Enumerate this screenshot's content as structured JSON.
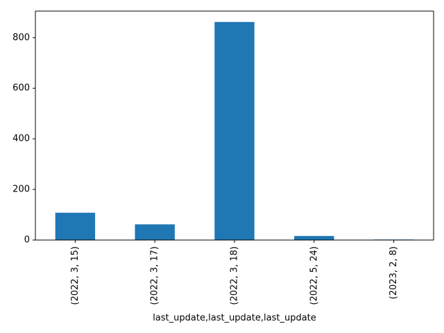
{
  "chart_data": {
    "type": "bar",
    "categories": [
      "(2022, 3, 15)",
      "(2022, 3, 17)",
      "(2022, 3, 18)",
      "(2022, 5, 24)",
      "(2023, 2, 8)"
    ],
    "values": [
      108,
      62,
      862,
      16,
      2
    ],
    "title": "",
    "xlabel": "last_update,last_update,last_update",
    "ylabel": "",
    "ylim": [
      0,
      905
    ],
    "yticks": [
      0,
      200,
      400,
      600,
      800
    ],
    "grid": false,
    "bar_color": "#1f77b4"
  }
}
